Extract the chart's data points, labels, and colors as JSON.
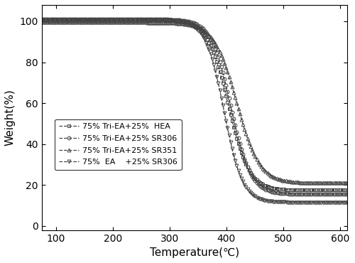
{
  "title": "",
  "xlabel": "Temperature(℃)",
  "ylabel": "Weight(%)",
  "xlim": [
    75,
    612
  ],
  "ylim": [
    -2,
    108
  ],
  "xticks": [
    100,
    200,
    300,
    400,
    500,
    600
  ],
  "yticks": [
    0,
    20,
    40,
    60,
    80,
    100
  ],
  "series": [
    {
      "label": "75% Tri-EA+25%  HEA",
      "marker": "s",
      "color": "#444444",
      "linestyle": "--",
      "start_weight": 101.2,
      "mid_temp": 403,
      "steepness": 0.055,
      "final_weight": 17.5
    },
    {
      "label": "75% Tri-EA+25% SR306",
      "marker": "o",
      "color": "#444444",
      "linestyle": "--",
      "start_weight": 101.0,
      "mid_temp": 408,
      "steepness": 0.058,
      "final_weight": 15.5
    },
    {
      "label": "75% Tri-EA+25% SR351",
      "marker": "^",
      "color": "#444444",
      "linestyle": "--",
      "start_weight": 99.5,
      "mid_temp": 418,
      "steepness": 0.05,
      "final_weight": 21.0
    },
    {
      "label": "75%  EA    +25% SR306",
      "marker": "v",
      "color": "#444444",
      "linestyle": "--",
      "start_weight": 100.5,
      "mid_temp": 396,
      "steepness": 0.062,
      "final_weight": 11.5
    }
  ],
  "figsize": [
    5.0,
    3.7
  ],
  "dpi": 100,
  "markersize": 3.5,
  "markevery": 6,
  "linewidth": 0.9
}
